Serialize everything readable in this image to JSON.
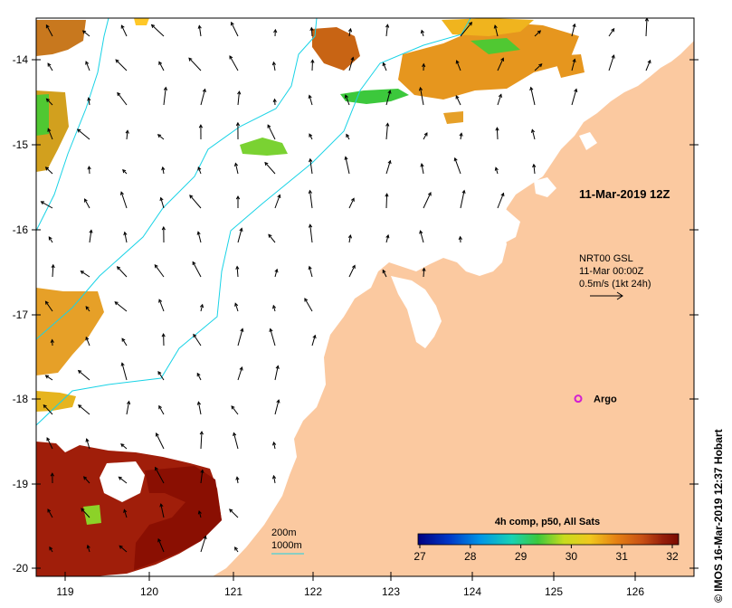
{
  "map": {
    "lon_ticks": [
      "119",
      "120",
      "121",
      "122",
      "123",
      "124",
      "125",
      "126"
    ],
    "lat_ticks": [
      "-14",
      "-15",
      "-16",
      "-17",
      "-18",
      "-19",
      "-20"
    ],
    "lon_range": [
      118.65,
      126.7
    ],
    "lat_range": [
      -20.1,
      -13.55
    ],
    "colors": {
      "land": "#fbc9a0",
      "ocean": "#ffffff",
      "bathymetry": "#19d3e6",
      "arrows": "#000000",
      "argo": "#d21ed2"
    }
  },
  "annotations": {
    "timestamp": "11-Mar-2019 12Z",
    "current_title": "NRT00 GSL",
    "current_time": "11-Mar 00:00Z",
    "current_scale": "0.5m/s (1kt 24h)",
    "argo_label": "Argo",
    "depth_200": "200m",
    "depth_1000": "1000m",
    "credit": "© IMOS 16-Mar-2019 12:37 Hobart"
  },
  "colorbar": {
    "title": "4h comp, p50, All Sats",
    "ticks": [
      "27",
      "28",
      "29",
      "30",
      "31",
      "32"
    ],
    "min": 27,
    "max": 32,
    "colors": [
      "#000080",
      "#0038c8",
      "#0096e6",
      "#18d2b4",
      "#3cc83c",
      "#c8dc1e",
      "#f0c81e",
      "#e68214",
      "#c85014",
      "#961e0a",
      "#7a0a00"
    ]
  },
  "argo": {
    "lon": 125.3,
    "lat": -18.0
  }
}
